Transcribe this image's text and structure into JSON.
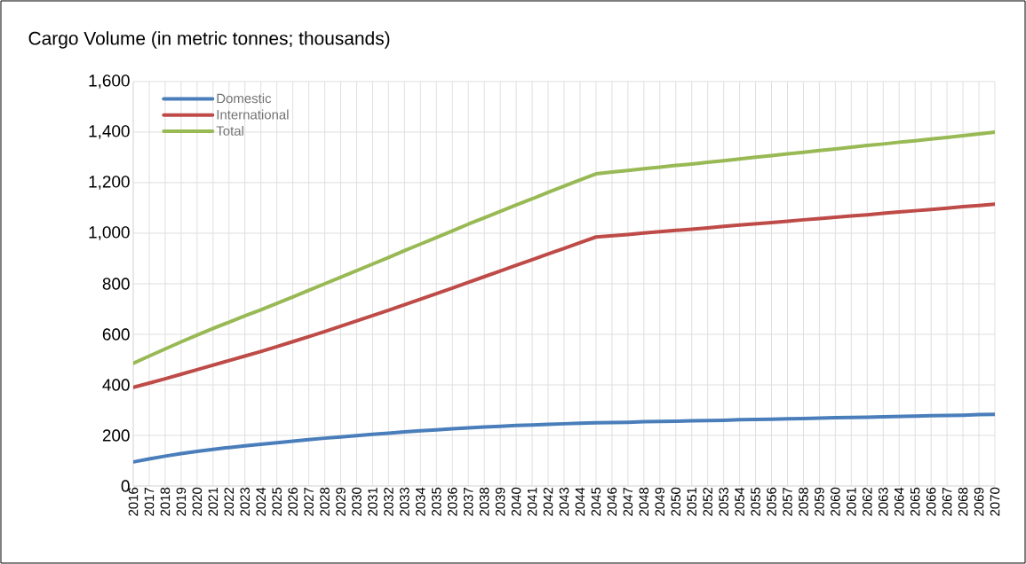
{
  "chart_data": {
    "type": "line",
    "title": "Cargo Volume (in metric tonnes; thousands)",
    "categories": [
      "2016",
      "2017",
      "2018",
      "2019",
      "2020",
      "2021",
      "2022",
      "2023",
      "2024",
      "2025",
      "2026",
      "2027",
      "2028",
      "2029",
      "2030",
      "2031",
      "2032",
      "2033",
      "2034",
      "2035",
      "2036",
      "2037",
      "2038",
      "2039",
      "2040",
      "2041",
      "2042",
      "2043",
      "2044",
      "2045",
      "2046",
      "2047",
      "2048",
      "2049",
      "2050",
      "2051",
      "2052",
      "2053",
      "2054",
      "2055",
      "2056",
      "2057",
      "2058",
      "2059",
      "2060",
      "2061",
      "2062",
      "2063",
      "2064",
      "2065",
      "2066",
      "2067",
      "2068",
      "2069",
      "2070"
    ],
    "series": [
      {
        "name": "Domestic",
        "color": "#4a7ebb",
        "values": [
          95,
          107,
          118,
          128,
          137,
          145,
          152,
          159,
          165,
          171,
          177,
          183,
          189,
          194,
          199,
          204,
          209,
          214,
          218,
          222,
          226,
          230,
          233,
          236,
          239,
          241,
          244,
          246,
          248,
          250,
          251,
          252,
          254,
          255,
          256,
          258,
          259,
          260,
          262,
          263,
          264,
          266,
          267,
          268,
          270,
          271,
          272,
          274,
          275,
          276,
          278,
          279,
          280,
          282,
          283
        ]
      },
      {
        "name": "International",
        "color": "#be4b48",
        "values": [
          390,
          407,
          424,
          442,
          460,
          478,
          496,
          514,
          532,
          551,
          571,
          591,
          611,
          632,
          653,
          674,
          695,
          717,
          739,
          761,
          783,
          806,
          828,
          850,
          873,
          895,
          918,
          940,
          963,
          985,
          990,
          995,
          1001,
          1006,
          1011,
          1016,
          1021,
          1027,
          1032,
          1037,
          1042,
          1047,
          1053,
          1058,
          1063,
          1068,
          1073,
          1079,
          1084,
          1089,
          1094,
          1099,
          1105,
          1110,
          1115
        ]
      },
      {
        "name": "Total",
        "color": "#98b954",
        "values": [
          485,
          514,
          542,
          570,
          597,
          623,
          648,
          673,
          697,
          722,
          748,
          774,
          800,
          826,
          852,
          878,
          904,
          931,
          957,
          983,
          1009,
          1036,
          1061,
          1086,
          1112,
          1136,
          1162,
          1186,
          1211,
          1235,
          1242,
          1248,
          1255,
          1261,
          1268,
          1274,
          1281,
          1287,
          1294,
          1301,
          1307,
          1314,
          1320,
          1327,
          1333,
          1340,
          1347,
          1353,
          1360,
          1366,
          1373,
          1379,
          1386,
          1393,
          1400
        ]
      }
    ],
    "ylim": [
      0,
      1600
    ],
    "yticks": [
      0,
      200,
      400,
      600,
      800,
      {
        "value": 1000,
        "label": "1,000"
      },
      {
        "value": 1200,
        "label": "1,200"
      },
      {
        "value": 1400,
        "label": "1,400"
      },
      {
        "value": 1600,
        "label": "1,600"
      }
    ],
    "grid": true,
    "legend": "top left",
    "marker": "none",
    "line_style": "solid"
  }
}
